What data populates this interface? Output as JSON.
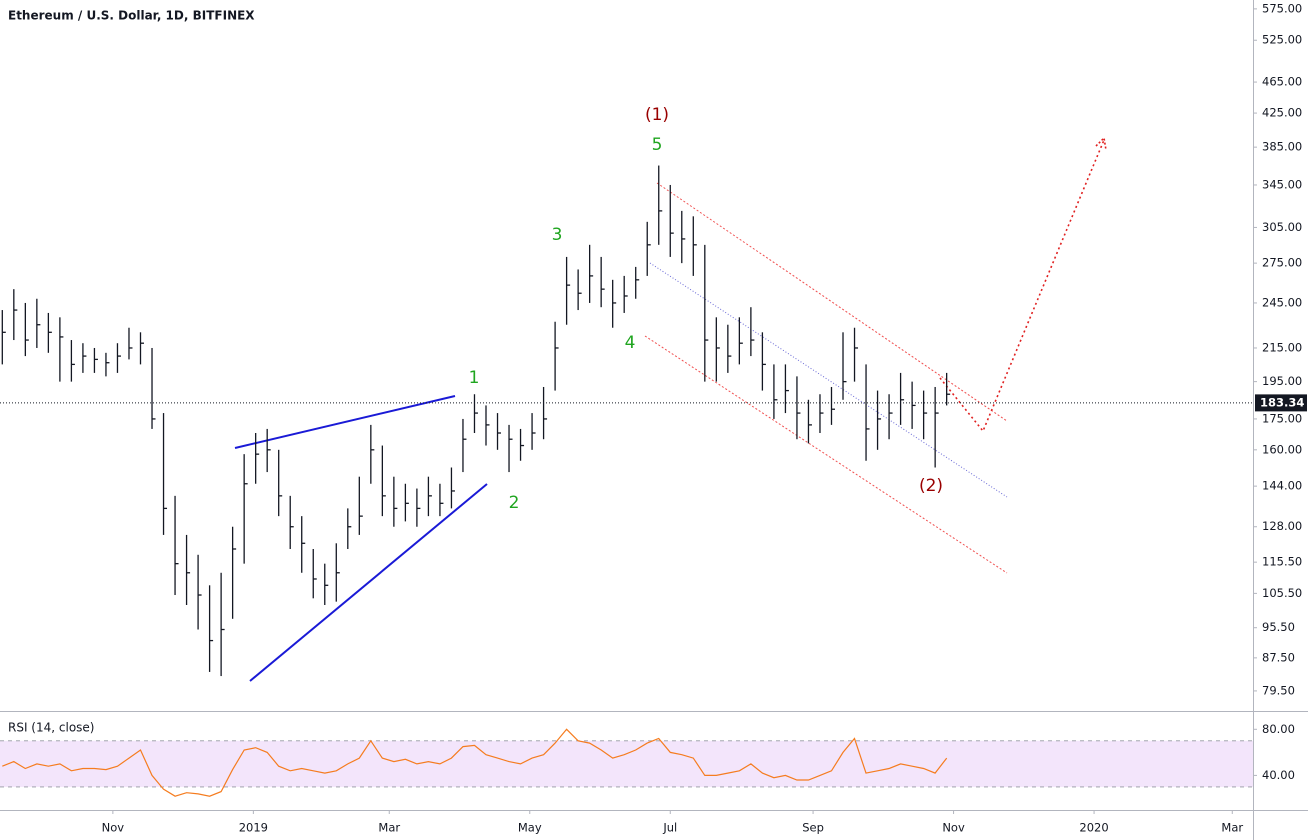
{
  "chart_data": [
    {
      "type": "hlc",
      "title": "Ethereum / U.S. Dollar, 1D, BITFINEX",
      "color": "#131722",
      "log_scale": true,
      "x": [
        -48,
        -43,
        -38,
        -33,
        -28,
        -23,
        -18,
        -13,
        -8,
        -3,
        2,
        7,
        12,
        17,
        22,
        27,
        32,
        37,
        42,
        47,
        52,
        57,
        62,
        67,
        72,
        77,
        82,
        87,
        92,
        97,
        102,
        107,
        112,
        117,
        122,
        127,
        132,
        137,
        142,
        147,
        152,
        157,
        162,
        167,
        172,
        177,
        182,
        187,
        192,
        197,
        202,
        207,
        212,
        217,
        222,
        227,
        232,
        237,
        242,
        247,
        252,
        257,
        262,
        267,
        272,
        277,
        282,
        287,
        292,
        297,
        302,
        307,
        312,
        317,
        322,
        327,
        332,
        337,
        342,
        347,
        352,
        357,
        362
      ],
      "high": [
        240,
        255,
        245,
        248,
        238,
        235,
        220,
        218,
        215,
        212,
        218,
        228,
        225,
        215,
        178,
        140,
        125,
        118,
        108,
        112,
        128,
        158,
        168,
        170,
        160,
        140,
        132,
        120,
        115,
        122,
        135,
        148,
        172,
        162,
        148,
        145,
        143,
        148,
        145,
        152,
        175,
        188,
        182,
        178,
        172,
        170,
        178,
        192,
        232,
        280,
        270,
        290,
        280,
        262,
        265,
        272,
        310,
        365,
        345,
        320,
        315,
        290,
        235,
        230,
        235,
        242,
        225,
        205,
        205,
        198,
        185,
        188,
        192,
        225,
        228,
        205,
        190,
        188,
        200,
        195,
        190,
        192,
        200
      ],
      "low": [
        205,
        220,
        210,
        215,
        212,
        195,
        195,
        200,
        200,
        198,
        200,
        208,
        205,
        170,
        125,
        105,
        102,
        95,
        84,
        83,
        98,
        115,
        145,
        150,
        132,
        120,
        112,
        104,
        102,
        103,
        120,
        125,
        145,
        132,
        128,
        130,
        128,
        132,
        132,
        135,
        150,
        168,
        162,
        160,
        150,
        155,
        160,
        165,
        190,
        230,
        240,
        245,
        242,
        228,
        238,
        248,
        265,
        290,
        280,
        275,
        265,
        195,
        195,
        200,
        205,
        210,
        190,
        175,
        178,
        165,
        163,
        168,
        172,
        185,
        195,
        155,
        160,
        165,
        172,
        170,
        165,
        152,
        182
      ],
      "values": [
        225,
        240,
        220,
        230,
        225,
        222,
        205,
        210,
        208,
        206,
        210,
        215,
        218,
        175,
        135,
        115,
        112,
        105,
        92,
        95,
        120,
        145,
        158,
        160,
        140,
        128,
        122,
        110,
        108,
        112,
        128,
        132,
        160,
        140,
        135,
        137,
        135,
        140,
        137,
        142,
        165,
        178,
        172,
        168,
        165,
        162,
        168,
        175,
        215,
        258,
        252,
        265,
        255,
        245,
        250,
        262,
        290,
        320,
        300,
        295,
        290,
        220,
        215,
        210,
        218,
        220,
        205,
        185,
        190,
        178,
        172,
        178,
        180,
        195,
        215,
        170,
        175,
        178,
        185,
        182,
        178,
        178,
        188
      ],
      "xlim": [
        -49,
        495
      ],
      "ylim": [
        75,
        590
      ],
      "yticks": [
        {
          "value": 575,
          "label": "575.00"
        },
        {
          "value": 525,
          "label": "525.00"
        },
        {
          "value": 465,
          "label": "465.00"
        },
        {
          "value": 425,
          "label": "425.00"
        },
        {
          "value": 385,
          "label": "385.00"
        },
        {
          "value": 345,
          "label": "345.00"
        },
        {
          "value": 305,
          "label": "305.00"
        },
        {
          "value": 275,
          "label": "275.00"
        },
        {
          "value": 245,
          "label": "245.00"
        },
        {
          "value": 215,
          "label": "215.00"
        },
        {
          "value": 195,
          "label": "195.00"
        },
        {
          "value": 175,
          "label": "175.00"
        },
        {
          "value": 160,
          "label": "160.00"
        },
        {
          "value": 144,
          "label": "144.00"
        },
        {
          "value": 128,
          "label": "128.00"
        },
        {
          "value": 115.5,
          "label": "115.50"
        },
        {
          "value": 105.5,
          "label": "105.50"
        },
        {
          "value": 95.5,
          "label": "95.50"
        },
        {
          "value": 87.5,
          "label": "87.50"
        },
        {
          "value": 79.5,
          "label": "79.50"
        }
      ],
      "last_price": 183.34,
      "annotations": [
        {
          "text": "(1)",
          "color": "#990000"
        },
        {
          "text": "5",
          "color": "#1fa51f"
        },
        {
          "text": "3",
          "color": "#1fa51f"
        },
        {
          "text": "4",
          "color": "#1fa51f"
        },
        {
          "text": "1",
          "color": "#1fa51f"
        },
        {
          "text": "2",
          "color": "#1fa51f"
        },
        {
          "text": "(2)",
          "color": "#990000"
        }
      ]
    },
    {
      "type": "line",
      "title": "RSI (14, close)",
      "color": "#f57c1f",
      "band": [
        30,
        70
      ],
      "band_color": "#f3e5fb",
      "x": [
        -48,
        -43,
        -38,
        -33,
        -28,
        -23,
        -18,
        -13,
        -8,
        -3,
        2,
        7,
        12,
        17,
        22,
        27,
        32,
        37,
        42,
        47,
        52,
        57,
        62,
        67,
        72,
        77,
        82,
        87,
        92,
        97,
        102,
        107,
        112,
        117,
        122,
        127,
        132,
        137,
        142,
        147,
        152,
        157,
        162,
        167,
        172,
        177,
        182,
        187,
        192,
        197,
        202,
        207,
        212,
        217,
        222,
        227,
        232,
        237,
        242,
        247,
        252,
        257,
        262,
        267,
        272,
        277,
        282,
        287,
        292,
        297,
        302,
        307,
        312,
        317,
        322,
        327,
        332,
        337,
        342,
        347,
        352,
        357,
        362
      ],
      "values": [
        48,
        52,
        46,
        50,
        48,
        50,
        44,
        46,
        46,
        45,
        48,
        55,
        62,
        40,
        28,
        22,
        25,
        24,
        22,
        26,
        45,
        62,
        64,
        60,
        48,
        44,
        46,
        44,
        42,
        44,
        50,
        55,
        70,
        55,
        52,
        54,
        50,
        52,
        50,
        55,
        65,
        66,
        58,
        55,
        52,
        50,
        55,
        58,
        68,
        80,
        70,
        68,
        62,
        55,
        58,
        62,
        68,
        72,
        60,
        58,
        55,
        40,
        40,
        42,
        44,
        50,
        42,
        38,
        40,
        36,
        36,
        40,
        44,
        60,
        72,
        42,
        44,
        46,
        50,
        48,
        46,
        42,
        55
      ],
      "xlim": [
        -49,
        495
      ],
      "ylim": [
        10,
        95
      ],
      "yticks": [
        {
          "value": 80,
          "label": "80.00"
        },
        {
          "value": 40,
          "label": "40.00"
        }
      ],
      "xticks": [
        {
          "value": 0,
          "label": "Nov"
        },
        {
          "value": 61,
          "label": "2019"
        },
        {
          "value": 120,
          "label": "Mar"
        },
        {
          "value": 181,
          "label": "May"
        },
        {
          "value": 242,
          "label": "Jul"
        },
        {
          "value": 304,
          "label": "Sep"
        },
        {
          "value": 365,
          "label": "Nov"
        },
        {
          "value": 426,
          "label": "2020"
        },
        {
          "value": 486,
          "label": "Mar"
        }
      ]
    }
  ]
}
